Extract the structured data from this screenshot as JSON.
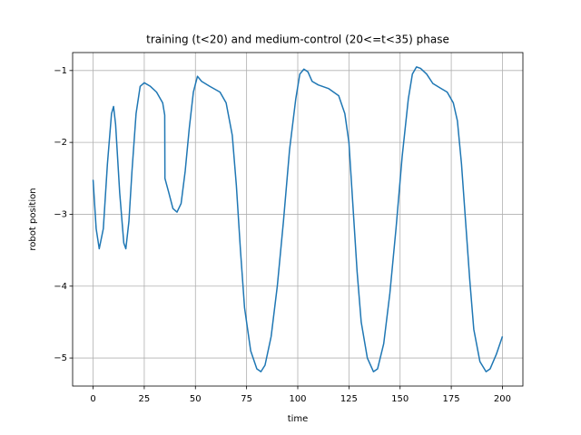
{
  "chart_data": {
    "type": "line",
    "title": "training (t<20) and medium-control (20<=t<35) phase",
    "x_label": "time",
    "y_label": "robot position",
    "x": [
      0,
      1.5,
      3,
      5,
      7,
      9,
      10,
      11,
      13,
      15,
      16,
      17.5,
      19,
      21,
      23,
      25,
      28,
      31,
      34,
      35,
      35.1,
      37,
      39,
      41,
      43,
      45,
      47,
      49,
      51,
      53,
      57,
      62,
      65,
      68,
      70,
      72,
      74,
      77,
      80,
      82,
      84,
      87,
      90,
      93,
      96,
      99,
      101,
      103,
      105,
      107,
      110,
      115,
      120,
      123,
      125,
      127,
      129,
      131,
      134,
      137,
      139,
      142,
      145,
      148,
      151,
      154,
      156,
      158,
      160,
      163,
      166,
      170,
      173,
      176,
      178,
      180,
      182,
      184,
      186,
      189,
      192,
      194,
      197,
      200
    ],
    "series": [
      {
        "color": "#1f77b4",
        "values": [
          -2.52,
          -3.2,
          -3.48,
          -3.2,
          -2.3,
          -1.6,
          -1.5,
          -1.75,
          -2.7,
          -3.4,
          -3.48,
          -3.1,
          -2.4,
          -1.6,
          -1.22,
          -1.17,
          -1.22,
          -1.3,
          -1.45,
          -1.62,
          -2.5,
          -2.7,
          -2.92,
          -2.97,
          -2.85,
          -2.4,
          -1.8,
          -1.3,
          -1.08,
          -1.15,
          -1.22,
          -1.3,
          -1.45,
          -1.9,
          -2.6,
          -3.5,
          -4.3,
          -4.9,
          -5.15,
          -5.19,
          -5.1,
          -4.7,
          -4.0,
          -3.1,
          -2.1,
          -1.4,
          -1.05,
          -0.98,
          -1.02,
          -1.15,
          -1.2,
          -1.25,
          -1.35,
          -1.6,
          -2.0,
          -2.9,
          -3.8,
          -4.5,
          -5.0,
          -5.19,
          -5.15,
          -4.8,
          -4.1,
          -3.2,
          -2.2,
          -1.4,
          -1.05,
          -0.95,
          -0.97,
          -1.05,
          -1.18,
          -1.25,
          -1.3,
          -1.45,
          -1.7,
          -2.3,
          -3.1,
          -3.9,
          -4.6,
          -5.05,
          -5.19,
          -5.15,
          -4.95,
          -4.7
        ]
      }
    ],
    "xlim": [
      -10,
      210
    ],
    "ylim": [
      -5.39,
      -0.75
    ],
    "xticks": [
      0,
      25,
      50,
      75,
      100,
      125,
      150,
      175,
      200
    ],
    "yticks": [
      {
        "value": -1,
        "label": "−1"
      },
      {
        "value": -2,
        "label": "−2"
      },
      {
        "value": -3,
        "label": "−3"
      },
      {
        "value": -4,
        "label": "−4"
      },
      {
        "value": -5,
        "label": "−5"
      }
    ],
    "grid": true
  }
}
